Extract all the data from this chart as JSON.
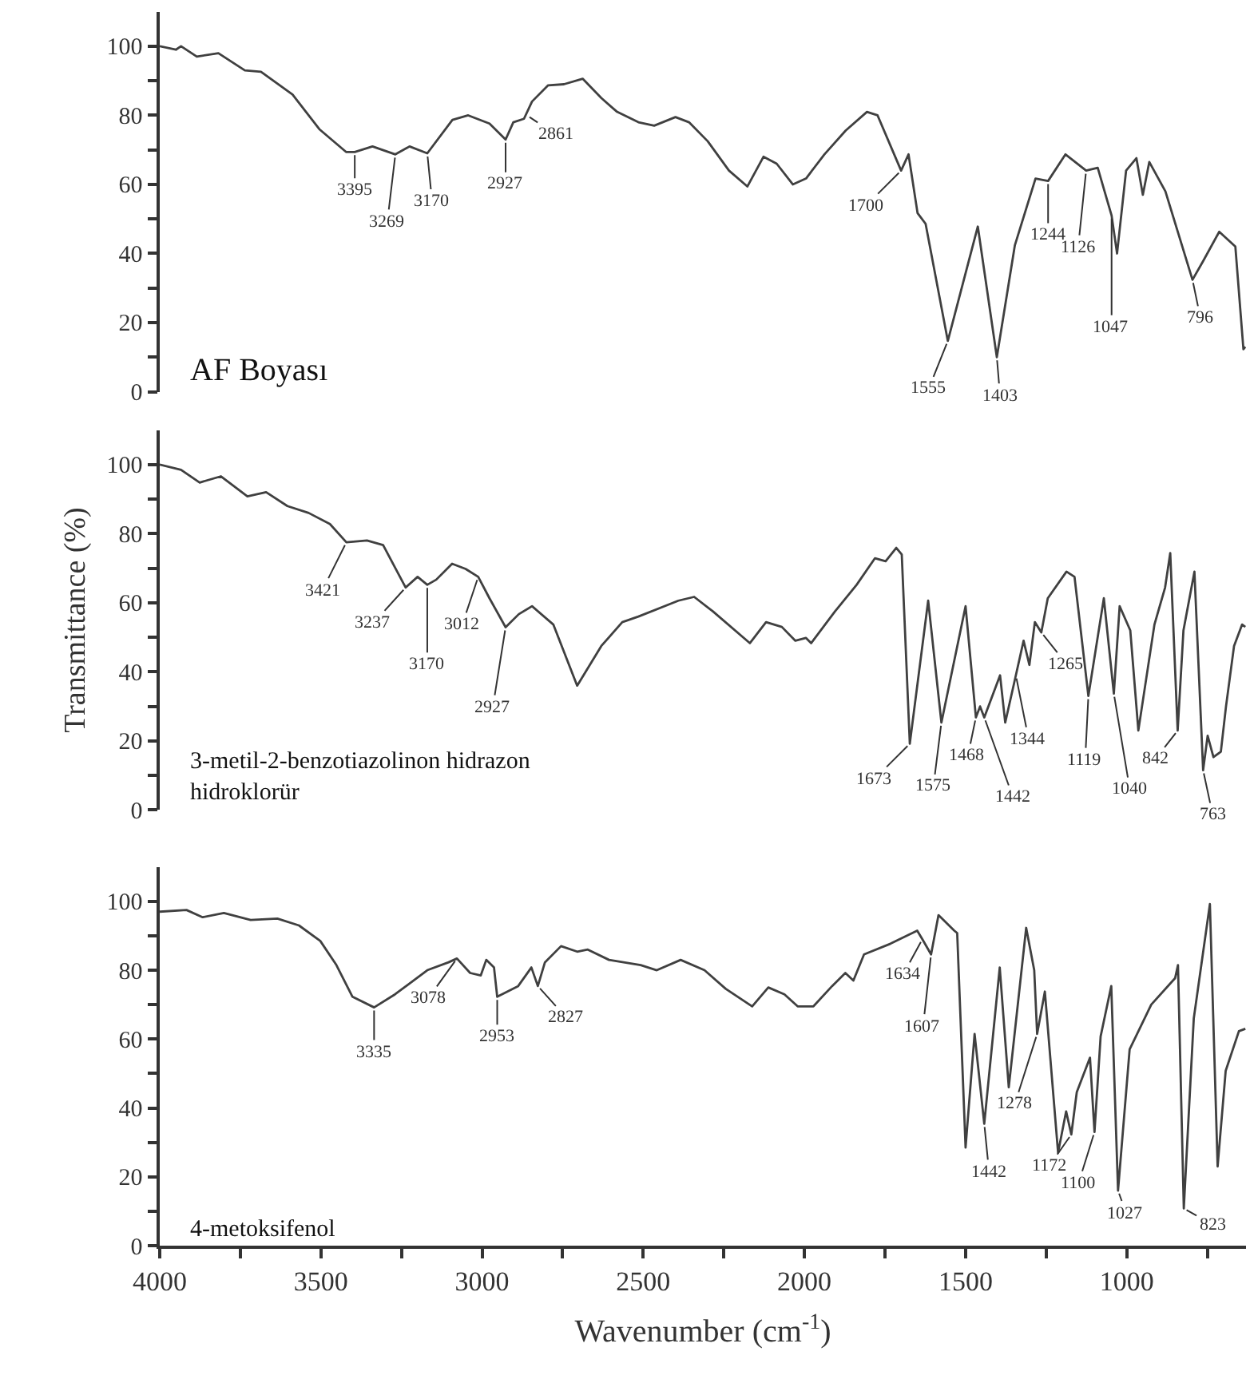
{
  "chart_data": [
    {
      "type": "line",
      "title": "AF Boyası",
      "xlim": [
        4000,
        630
      ],
      "ylim": [
        0,
        110
      ],
      "yticks": [
        0,
        {
          "value": 10,
          "label": null
        },
        20,
        {
          "value": 30,
          "label": null
        },
        40,
        {
          "value": 50,
          "label": null
        },
        60,
        {
          "value": 70,
          "label": null
        },
        80,
        {
          "value": 90,
          "label": null
        },
        100
      ],
      "tick_labels": "y",
      "marker": "none",
      "line_style": "solid",
      "x": [
        4000,
        3950,
        3934,
        3885,
        3818,
        3736,
        3686,
        3588,
        3505,
        3422,
        3395,
        3340,
        3269,
        3225,
        3170,
        3092,
        3043,
        2977,
        2927,
        2903,
        2870,
        2845,
        2795,
        2746,
        2688,
        2630,
        2581,
        2515,
        2466,
        2400,
        2358,
        2300,
        2234,
        2177,
        2127,
        2086,
        2036,
        1995,
        1938,
        1872,
        1806,
        1773,
        1700,
        1677,
        1649,
        1624,
        1555,
        1462,
        1403,
        1347,
        1283,
        1244,
        1190,
        1126,
        1090,
        1047,
        1030,
        1002,
        970,
        950,
        930,
        880,
        796,
        763,
        713,
        663,
        638,
        632
      ],
      "series": [
        {
          "color": "#404040",
          "values": [
            100,
            99,
            100,
            97,
            98,
            93,
            92.6,
            86,
            76,
            69.4,
            69.4,
            71,
            68.7,
            71,
            69,
            78.7,
            80,
            77.6,
            73,
            78,
            79,
            84,
            88.7,
            89,
            90.6,
            85,
            81,
            78,
            77,
            79.5,
            78,
            72.5,
            64,
            59.4,
            68,
            66,
            60,
            61.7,
            68.7,
            75.6,
            81,
            80,
            64,
            68.7,
            51.7,
            48.6,
            14.7,
            47.8,
            10,
            42.4,
            61.7,
            61,
            68.7,
            64,
            64.8,
            51,
            40,
            64,
            67.6,
            57,
            66.5,
            58,
            32.4,
            37.8,
            46.3,
            42,
            12.3,
            13
          ]
        }
      ],
      "annotations": [
        {
          "text": "3395",
          "x": 3395,
          "y": 69.4
        },
        {
          "text": "3269",
          "x": 3269,
          "y": 68.7
        },
        {
          "text": "3170",
          "x": 3170,
          "y": 69
        },
        {
          "text": "2927",
          "x": 2927,
          "y": 73
        },
        {
          "text": "2861",
          "x": 2861,
          "y": 80
        },
        {
          "text": "1700",
          "x": 1700,
          "y": 64
        },
        {
          "text": "1555",
          "x": 1555,
          "y": 14.7
        },
        {
          "text": "1403",
          "x": 1403,
          "y": 10
        },
        {
          "text": "1244",
          "x": 1244,
          "y": 61
        },
        {
          "text": "1126",
          "x": 1126,
          "y": 64
        },
        {
          "text": "1047",
          "x": 1047,
          "y": 51
        },
        {
          "text": "796",
          "x": 796,
          "y": 32.4
        }
      ]
    },
    {
      "type": "line",
      "title": "3-metil-2-benzotiazolinon hidrazon hidroklorür",
      "ylabel": "Transmittance (%)",
      "xlim": [
        4000,
        630
      ],
      "ylim": [
        0,
        110
      ],
      "yticks": [
        0,
        {
          "value": 10,
          "label": null
        },
        20,
        {
          "value": 30,
          "label": null
        },
        40,
        {
          "value": 50,
          "label": null
        },
        60,
        {
          "value": 70,
          "label": null
        },
        80,
        {
          "value": 90,
          "label": null
        },
        100
      ],
      "tick_labels": "y",
      "marker": "none",
      "line_style": "solid",
      "x": [
        4000,
        3934,
        3876,
        3810,
        3728,
        3670,
        3604,
        3538,
        3472,
        3421,
        3357,
        3307,
        3237,
        3200,
        3170,
        3142,
        3093,
        3051,
        3012,
        2977,
        2927,
        2886,
        2845,
        2779,
        2705,
        2630,
        2565,
        2515,
        2391,
        2342,
        2284,
        2169,
        2119,
        2070,
        2028,
        1995,
        1979,
        1905,
        1838,
        1781,
        1748,
        1715,
        1698,
        1673,
        1616,
        1575,
        1500,
        1468,
        1455,
        1442,
        1393,
        1377,
        1344,
        1320,
        1302,
        1285,
        1265,
        1245,
        1187,
        1162,
        1119,
        1071,
        1040,
        1022,
        989,
        964,
        914,
        881,
        865,
        842,
        824,
        790,
        763,
        749,
        731,
        708,
        692,
        667,
        642,
        632
      ],
      "series": [
        {
          "color": "#404040",
          "values": [
            100,
            98.5,
            94.8,
            96.6,
            90.8,
            92,
            88,
            86,
            82.8,
            77.5,
            78,
            76.7,
            64.4,
            67.5,
            65.2,
            66.7,
            71.3,
            69.8,
            67.5,
            61.3,
            52.9,
            56.7,
            59,
            53.7,
            36,
            47.5,
            54.4,
            56,
            60.6,
            61.7,
            57.5,
            48.3,
            54.4,
            53,
            49,
            49.8,
            48.3,
            57.5,
            65.2,
            72.9,
            72,
            75.9,
            74,
            19.2,
            60.6,
            25.3,
            59,
            26.8,
            30,
            26.8,
            39,
            25.3,
            39,
            49,
            42,
            54.4,
            51.4,
            61.3,
            69,
            67.5,
            33,
            61.3,
            33.7,
            59,
            52,
            23,
            53.7,
            64.4,
            74.4,
            23,
            52,
            69,
            11.5,
            21.5,
            15.3,
            16.9,
            30,
            47.5,
            53.7,
            53
          ]
        }
      ],
      "annotations": [
        {
          "text": "3421",
          "x": 3421,
          "y": 77.5
        },
        {
          "text": "3237",
          "x": 3237,
          "y": 64.4
        },
        {
          "text": "3170",
          "x": 3170,
          "y": 65.2
        },
        {
          "text": "3012",
          "x": 3012,
          "y": 67.5
        },
        {
          "text": "2927",
          "x": 2927,
          "y": 52.9
        },
        {
          "text": "1673",
          "x": 1673,
          "y": 19.2
        },
        {
          "text": "1575",
          "x": 1575,
          "y": 25.3
        },
        {
          "text": "1468",
          "x": 1468,
          "y": 26.8
        },
        {
          "text": "1442",
          "x": 1442,
          "y": 26.8
        },
        {
          "text": "1344",
          "x": 1344,
          "y": 39
        },
        {
          "text": "1265",
          "x": 1265,
          "y": 51.4
        },
        {
          "text": "1119",
          "x": 1119,
          "y": 33
        },
        {
          "text": "1040",
          "x": 1040,
          "y": 33.7
        },
        {
          "text": "842",
          "x": 842,
          "y": 23
        },
        {
          "text": "763",
          "x": 763,
          "y": 11.5
        }
      ]
    },
    {
      "type": "line",
      "title": "4-metoksifenol",
      "xlabel": "Wavenumber (cm$^{-1}$)",
      "xlim": [
        4000,
        630
      ],
      "xticks": [
        4000,
        {
          "value": 3750,
          "label": null
        },
        3500,
        {
          "value": 3250,
          "label": null
        },
        3000,
        {
          "value": 2750,
          "label": null
        },
        2500,
        {
          "value": 2250,
          "label": null
        },
        2000,
        {
          "value": 1750,
          "label": null
        },
        1500,
        {
          "value": 1250,
          "label": null
        },
        1000,
        {
          "value": 750,
          "label": null
        }
      ],
      "ylim": [
        0,
        110
      ],
      "yticks": [
        0,
        {
          "value": 10,
          "label": null
        },
        20,
        {
          "value": 30,
          "label": null
        },
        40,
        {
          "value": 50,
          "label": null
        },
        60,
        {
          "value": 70,
          "label": null
        },
        80,
        {
          "value": 90,
          "label": null
        },
        100
      ],
      "marker": "none",
      "line_style": "solid",
      "x": [
        4000,
        3917,
        3867,
        3801,
        3718,
        3635,
        3568,
        3502,
        3452,
        3402,
        3335,
        3270,
        3170,
        3104,
        3078,
        3037,
        3004,
        2987,
        2963,
        2953,
        2888,
        2847,
        2827,
        2805,
        2755,
        2705,
        2672,
        2606,
        2508,
        2458,
        2384,
        2310,
        2244,
        2162,
        2112,
        2062,
        2021,
        1972,
        1914,
        1873,
        1848,
        1815,
        1733,
        1650,
        1634,
        1607,
        1584,
        1535,
        1526,
        1500,
        1472,
        1442,
        1394,
        1366,
        1312,
        1287,
        1278,
        1254,
        1213,
        1188,
        1172,
        1155,
        1114,
        1100,
        1081,
        1048,
        1027,
        991,
        924,
        850,
        841,
        823,
        792,
        742,
        718,
        693,
        652,
        632
      ],
      "series": [
        {
          "color": "#404040",
          "values": [
            97,
            97.5,
            95.4,
            96.6,
            94.6,
            95,
            93,
            88.5,
            81.5,
            72.3,
            69.2,
            73,
            80,
            82.3,
            83.4,
            79.2,
            78.5,
            83,
            80.8,
            72.3,
            75.4,
            80.8,
            75.4,
            82.3,
            87,
            85.4,
            86,
            83,
            81.5,
            80,
            83,
            80,
            74.6,
            69.5,
            75,
            73,
            69.5,
            69.5,
            75.4,
            79.2,
            77,
            84.6,
            87.7,
            91.5,
            89,
            84.6,
            96,
            91.5,
            90.8,
            28.5,
            61.5,
            35.4,
            80.8,
            46,
            92.3,
            80,
            61.5,
            73.8,
            27,
            39,
            32.3,
            44.6,
            54.6,
            33,
            60.8,
            75.4,
            16,
            57,
            70,
            77.7,
            81.5,
            10.8,
            66,
            99.2,
            23,
            50.8,
            62.3,
            63
          ]
        }
      ],
      "annotations": [
        {
          "text": "3335",
          "x": 3335,
          "y": 69.2
        },
        {
          "text": "3078",
          "x": 3078,
          "y": 83.4
        },
        {
          "text": "2953",
          "x": 2953,
          "y": 72.3
        },
        {
          "text": "2827",
          "x": 2827,
          "y": 75.4
        },
        {
          "text": "1634",
          "x": 1634,
          "y": 89
        },
        {
          "text": "1607",
          "x": 1607,
          "y": 84.6
        },
        {
          "text": "1442",
          "x": 1442,
          "y": 35.4
        },
        {
          "text": "1278",
          "x": 1278,
          "y": 61.5
        },
        {
          "text": "1172",
          "x": 1172,
          "y": 32.3
        },
        {
          "text": "1100",
          "x": 1100,
          "y": 33
        },
        {
          "text": "1027",
          "x": 1027,
          "y": 16
        },
        {
          "text": "823",
          "x": 823,
          "y": 10.8
        }
      ]
    }
  ]
}
